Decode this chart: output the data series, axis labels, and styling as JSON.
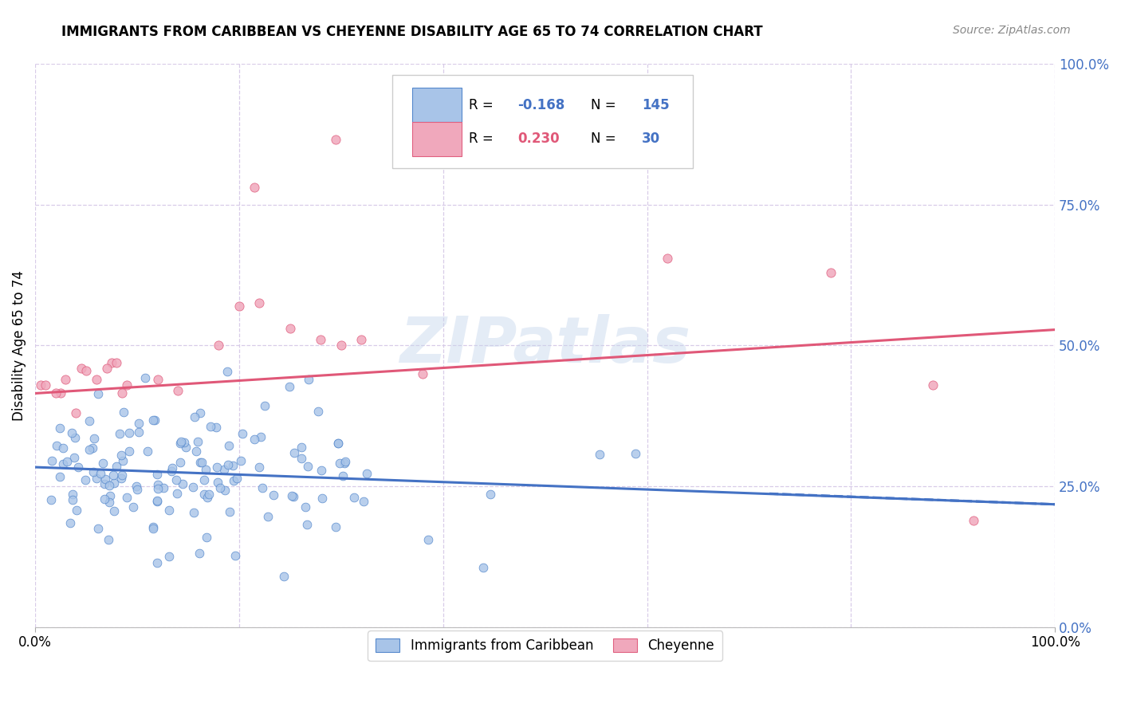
{
  "title": "IMMIGRANTS FROM CARIBBEAN VS CHEYENNE DISABILITY AGE 65 TO 74 CORRELATION CHART",
  "source": "Source: ZipAtlas.com",
  "ylabel": "Disability Age 65 to 74",
  "watermark": "ZIPatlas",
  "legend_blue_r": "-0.168",
  "legend_blue_n": "145",
  "legend_pink_r": "0.230",
  "legend_pink_n": "30",
  "blue_fill": "#a8c4e8",
  "pink_fill": "#f0a8bc",
  "blue_edge": "#5588cc",
  "pink_edge": "#e06080",
  "blue_line": "#4472c4",
  "pink_line": "#e05878",
  "xlim": [
    0,
    1
  ],
  "ylim": [
    0,
    1
  ],
  "background_color": "#ffffff",
  "grid_color": "#d8cce8",
  "n_blue": 145,
  "n_pink": 30,
  "blue_seed": 42,
  "pink_seed": 99,
  "title_fontsize": 12,
  "source_fontsize": 10,
  "tick_fontsize": 12,
  "ylabel_fontsize": 12
}
